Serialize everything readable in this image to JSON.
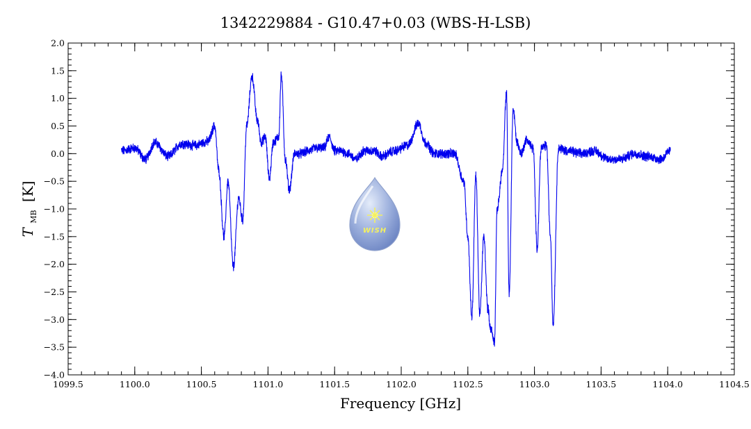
{
  "chart_data": {
    "type": "line",
    "title": "1342229884 - G10.47+0.03 (WBS-H-LSB)",
    "xlabel": "Frequency [GHz]",
    "ylabel_main": "T",
    "ylabel_sub": "MB",
    "ylabel_unit": "[K]",
    "xlim": [
      1099.5,
      1104.5
    ],
    "ylim": [
      -4.0,
      2.0
    ],
    "xticks": [
      "1099.5",
      "1100.0",
      "1100.5",
      "1101.0",
      "1101.5",
      "1102.0",
      "1102.5",
      "1103.0",
      "1103.5",
      "1104.0",
      "1104.5"
    ],
    "yticks": [
      "2.0",
      "1.5",
      "1.0",
      "0.5",
      "0.0",
      "-0.5",
      "-1.0",
      "-1.5",
      "-2.0",
      "-2.5",
      "-3.0",
      "-3.5",
      "-4.0"
    ],
    "grid": false,
    "series": [
      {
        "color": "#0000ee",
        "x_range": [
          1099.9,
          1104.02
        ],
        "points": [
          [
            1099.9,
            0.05
          ],
          [
            1100.0,
            0.1
          ],
          [
            1100.08,
            -0.1
          ],
          [
            1100.15,
            0.2
          ],
          [
            1100.25,
            -0.05
          ],
          [
            1100.35,
            0.18
          ],
          [
            1100.45,
            0.15
          ],
          [
            1100.55,
            0.22
          ],
          [
            1100.6,
            0.5
          ],
          [
            1100.63,
            -0.3
          ],
          [
            1100.67,
            -1.5
          ],
          [
            1100.7,
            -0.5
          ],
          [
            1100.74,
            -2.05
          ],
          [
            1100.78,
            -0.8
          ],
          [
            1100.81,
            -1.2
          ],
          [
            1100.84,
            0.5
          ],
          [
            1100.88,
            1.4
          ],
          [
            1100.92,
            0.6
          ],
          [
            1100.95,
            0.2
          ],
          [
            1100.98,
            0.3
          ],
          [
            1101.01,
            -0.45
          ],
          [
            1101.04,
            0.2
          ],
          [
            1101.08,
            0.3
          ],
          [
            1101.1,
            1.42
          ],
          [
            1101.13,
            -0.1
          ],
          [
            1101.16,
            -0.65
          ],
          [
            1101.2,
            0.0
          ],
          [
            1101.25,
            0.0
          ],
          [
            1101.3,
            0.05
          ],
          [
            1101.36,
            0.1
          ],
          [
            1101.42,
            0.1
          ],
          [
            1101.46,
            0.3
          ],
          [
            1101.5,
            0.05
          ],
          [
            1101.55,
            0.05
          ],
          [
            1101.6,
            0.0
          ],
          [
            1101.66,
            -0.1
          ],
          [
            1101.72,
            0.05
          ],
          [
            1101.8,
            0.05
          ],
          [
            1101.85,
            -0.05
          ],
          [
            1101.95,
            0.05
          ],
          [
            1102.05,
            0.15
          ],
          [
            1102.13,
            0.55
          ],
          [
            1102.18,
            0.2
          ],
          [
            1102.25,
            0.0
          ],
          [
            1102.32,
            0.0
          ],
          [
            1102.4,
            0.0
          ],
          [
            1102.47,
            -0.5
          ],
          [
            1102.5,
            -1.5
          ],
          [
            1102.53,
            -2.95
          ],
          [
            1102.56,
            -0.4
          ],
          [
            1102.59,
            -2.9
          ],
          [
            1102.62,
            -1.5
          ],
          [
            1102.65,
            -2.8
          ],
          [
            1102.67,
            -3.15
          ],
          [
            1102.7,
            -3.4
          ],
          [
            1102.72,
            -1.0
          ],
          [
            1102.76,
            -0.3
          ],
          [
            1102.79,
            1.1
          ],
          [
            1102.81,
            -2.55
          ],
          [
            1102.84,
            0.8
          ],
          [
            1102.87,
            0.2
          ],
          [
            1102.9,
            0.0
          ],
          [
            1102.94,
            0.25
          ],
          [
            1102.99,
            0.1
          ],
          [
            1103.02,
            -1.7
          ],
          [
            1103.05,
            0.1
          ],
          [
            1103.09,
            0.15
          ],
          [
            1103.12,
            -1.5
          ],
          [
            1103.14,
            -3.1
          ],
          [
            1103.18,
            0.1
          ],
          [
            1103.25,
            0.05
          ],
          [
            1103.35,
            0.0
          ],
          [
            1103.45,
            0.05
          ],
          [
            1103.55,
            -0.1
          ],
          [
            1103.65,
            -0.1
          ],
          [
            1103.75,
            0.0
          ],
          [
            1103.85,
            -0.05
          ],
          [
            1103.95,
            -0.1
          ],
          [
            1104.02,
            0.05
          ]
        ]
      }
    ]
  },
  "logo": {
    "text": "WISH",
    "colors": [
      "#b8c8e8",
      "#7d96cf",
      "#f3f060"
    ]
  }
}
